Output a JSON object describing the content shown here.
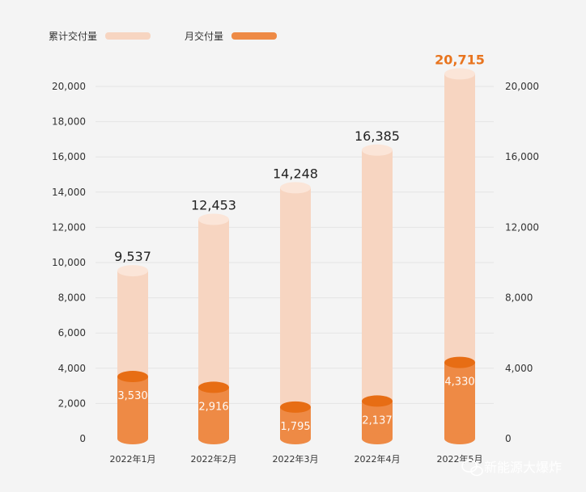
{
  "colors": {
    "cumulative": "#f7d5c1",
    "cumulative_top": "#fbe5d8",
    "monthly": "#ee8a45",
    "monthly_top": "#e76d14",
    "highlight": "#e8741e"
  },
  "legend": {
    "cumulative_label": "累计交付量",
    "monthly_label": "月交付量"
  },
  "watermark": {
    "text": "新能源大爆炸",
    "icon": "wechat-icon"
  },
  "chart_data": {
    "type": "bar",
    "categories": [
      "2022年1月",
      "2022年2月",
      "2022年3月",
      "2022年4月",
      "2022年5月"
    ],
    "series": [
      {
        "name": "累计交付量",
        "values": [
          9537,
          12453,
          14248,
          16385,
          20715
        ]
      },
      {
        "name": "月交付量",
        "values": [
          3530,
          2916,
          1795,
          2137,
          4330
        ]
      }
    ],
    "value_labels": {
      "cumulative": [
        "9,537",
        "12,453",
        "14,248",
        "16,385",
        "20,715"
      ],
      "monthly": [
        "3,530",
        "2,916",
        "1,795",
        "2,137",
        "4,330"
      ]
    },
    "left_axis": {
      "ticks": [
        0,
        2000,
        4000,
        6000,
        8000,
        10000,
        12000,
        14000,
        16000,
        18000,
        20000
      ],
      "tick_labels": [
        "0",
        "2,000",
        "4,000",
        "6,000",
        "8,000",
        "10,000",
        "12,000",
        "14,000",
        "16,000",
        "18,000",
        "20,000"
      ]
    },
    "right_axis": {
      "ticks": [
        0,
        4000,
        8000,
        12000,
        16000,
        20000
      ],
      "tick_labels": [
        "0",
        "4,000",
        "8,000",
        "12,000",
        "16,000",
        "20,000"
      ]
    },
    "ylim": [
      0,
      20000
    ],
    "grid": true,
    "legend_position": "top-left",
    "highlight_index": 4
  }
}
